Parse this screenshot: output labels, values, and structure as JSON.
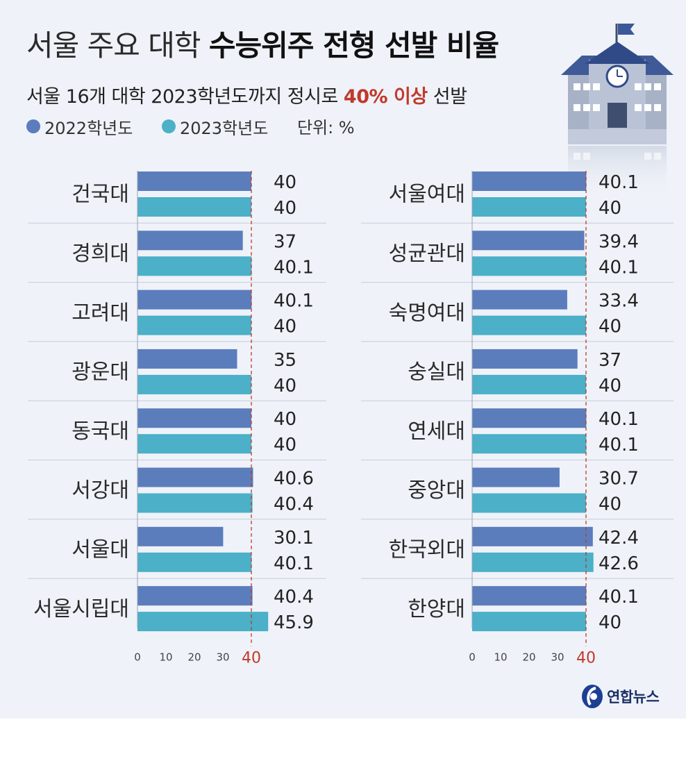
{
  "title": {
    "light": "서울 주요 대학",
    "bold": "수능위주 전형 선발 비율"
  },
  "subtitle": {
    "prefix": "서울 16개 대학 2023학년도까지 정시로",
    "highlight": "40% 이상",
    "suffix": "선발"
  },
  "legend": {
    "items": [
      "2022학년도",
      "2023학년도"
    ],
    "unit": "단위: %"
  },
  "colors": {
    "series_2022": "#5b7dbc",
    "series_2023": "#4bb0c8",
    "reference": "#c0392b",
    "panel": "#eff2f8"
  },
  "logo": {
    "text": "연합뉴스"
  },
  "chart_data": [
    {
      "type": "bar",
      "orientation": "horizontal",
      "categories": [
        "건국대",
        "경희대",
        "고려대",
        "광운대",
        "동국대",
        "서강대",
        "서울대",
        "서울시립대"
      ],
      "series": [
        {
          "name": "2022학년도",
          "values": [
            40,
            37,
            40.1,
            35,
            40,
            40.6,
            30.1,
            40.4
          ]
        },
        {
          "name": "2023학년도",
          "values": [
            40,
            40.1,
            40,
            40,
            40,
            40.4,
            40.1,
            45.9
          ]
        }
      ],
      "xticks": [
        0,
        10,
        20,
        30,
        40
      ],
      "reference_line": 40,
      "xlim": [
        0,
        46
      ]
    },
    {
      "type": "bar",
      "orientation": "horizontal",
      "categories": [
        "서울여대",
        "성균관대",
        "숙명여대",
        "숭실대",
        "연세대",
        "중앙대",
        "한국외대",
        "한양대"
      ],
      "series": [
        {
          "name": "2022학년도",
          "values": [
            40.1,
            39.4,
            33.4,
            37,
            40.1,
            30.7,
            42.4,
            40.1
          ]
        },
        {
          "name": "2023학년도",
          "values": [
            40,
            40.1,
            40,
            40,
            40.1,
            40,
            42.6,
            40
          ]
        }
      ],
      "xticks": [
        0,
        10,
        20,
        30,
        40
      ],
      "reference_line": 40,
      "xlim": [
        0,
        46
      ]
    }
  ]
}
